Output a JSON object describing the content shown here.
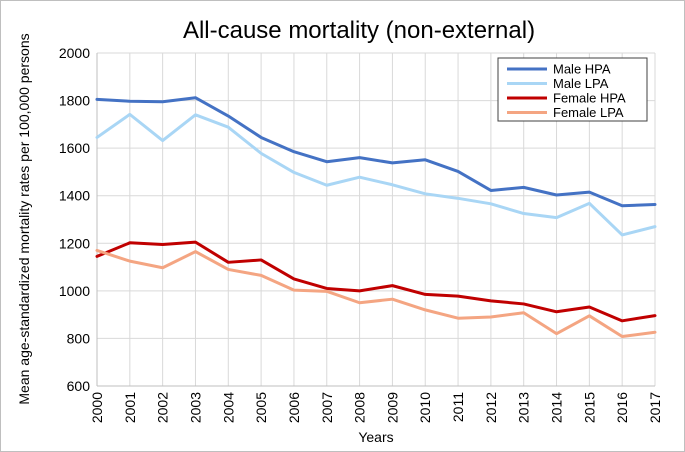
{
  "chart_data": {
    "type": "line",
    "title": "All-cause mortality (non-external)",
    "xlabel": "Years",
    "ylabel": "Mean age-standardized mortality rates per 100,000 persons",
    "x": [
      "2000",
      "2001",
      "2002",
      "2003",
      "2004",
      "2005",
      "2006",
      "2007",
      "2008",
      "2009",
      "2010",
      "2011",
      "2012",
      "2013",
      "2014",
      "2015",
      "2016",
      "2017"
    ],
    "ylim": [
      600,
      2000
    ],
    "yticks": [
      "600",
      "800",
      "1000",
      "1200",
      "1400",
      "1600",
      "1800",
      "2000"
    ],
    "grid": true,
    "legend_position": "top-right",
    "series": [
      {
        "name": "Male HPA",
        "color": "#4472c4",
        "values": [
          1805,
          1797,
          1795,
          1812,
          1735,
          1645,
          1585,
          1543,
          1560,
          1538,
          1551,
          1502,
          1422,
          1435,
          1403,
          1415,
          1358,
          1363
        ]
      },
      {
        "name": "Male LPA",
        "color": "#a9d6f5",
        "values": [
          1645,
          1742,
          1632,
          1740,
          1688,
          1578,
          1498,
          1444,
          1478,
          1446,
          1408,
          1389,
          1366,
          1325,
          1308,
          1368,
          1235,
          1270
        ]
      },
      {
        "name": "Female HPA",
        "color": "#c00000",
        "values": [
          1145,
          1202,
          1195,
          1205,
          1120,
          1130,
          1050,
          1010,
          1000,
          1022,
          985,
          978,
          958,
          945,
          912,
          932,
          874,
          896
        ]
      },
      {
        "name": "Female LPA",
        "color": "#f4a582",
        "values": [
          1170,
          1125,
          1097,
          1165,
          1090,
          1065,
          1003,
          998,
          950,
          965,
          920,
          885,
          890,
          908,
          820,
          895,
          808,
          826
        ]
      }
    ]
  }
}
